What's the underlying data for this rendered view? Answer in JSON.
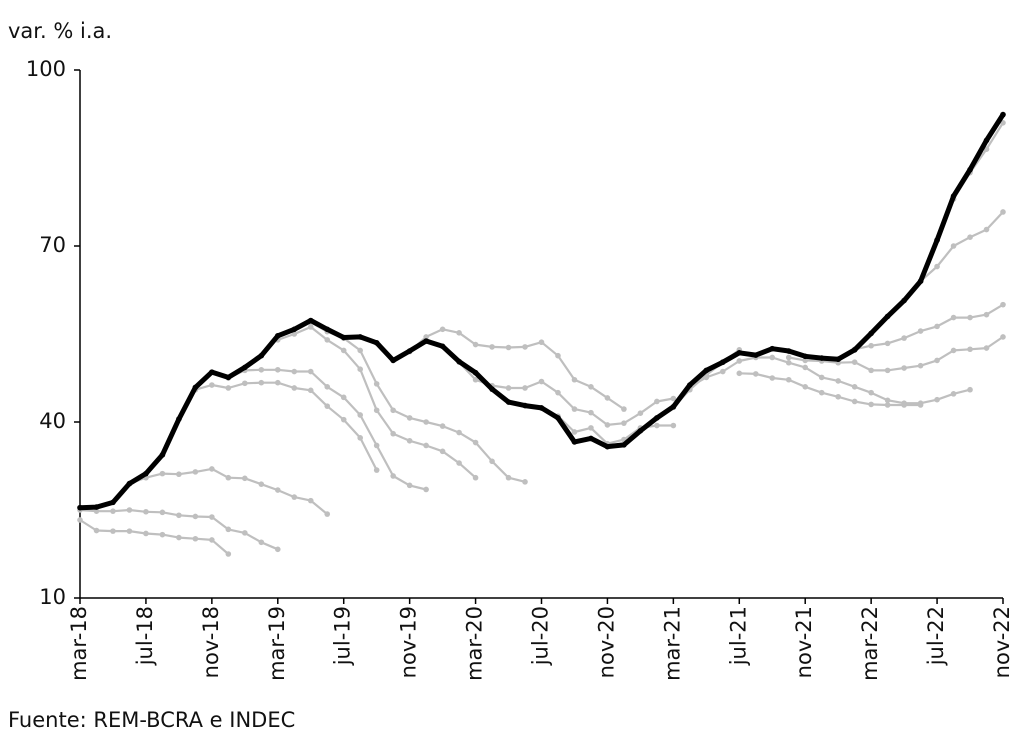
{
  "chart_data": {
    "type": "line",
    "y_label": "var. % i.a.",
    "source": "Fuente: REM-BCRA e INDEC",
    "categories": [
      "mar-18",
      null,
      null,
      null,
      "jul-18",
      null,
      null,
      null,
      "nov-18",
      null,
      null,
      null,
      "mar-19",
      null,
      null,
      null,
      "jul-19",
      null,
      null,
      null,
      "nov-19",
      null,
      null,
      null,
      "mar-20",
      null,
      null,
      null,
      "jul-20",
      null,
      null,
      null,
      "nov-20",
      null,
      null,
      null,
      "mar-21",
      null,
      null,
      null,
      "jul-21",
      null,
      null,
      null,
      "nov-21",
      null,
      null,
      null,
      "mar-22",
      null,
      null,
      null,
      "jul-22",
      null,
      null,
      null,
      "nov-22"
    ],
    "ylim": [
      10,
      100
    ],
    "yticks": [
      10,
      40,
      70,
      100
    ],
    "grid": false,
    "series": [
      {
        "color": "#bfbfbf",
        "values": [
          23.3,
          21.5,
          21.4,
          21.4,
          21.0,
          20.8,
          20.3,
          20.1,
          19.9,
          17.5,
          null,
          null,
          null,
          null,
          null,
          null,
          null,
          null,
          null,
          null,
          null,
          null,
          null,
          null,
          null,
          null,
          null,
          null,
          null,
          null,
          null,
          null,
          null,
          null,
          null,
          null,
          null,
          null,
          null,
          null,
          null,
          null,
          null,
          null,
          null,
          null,
          null,
          null,
          null,
          null,
          null,
          null,
          null,
          null,
          null,
          null,
          null
        ]
      },
      {
        "color": "#bfbfbf",
        "values": [
          25.0,
          24.8,
          24.8,
          25.0,
          24.7,
          24.6,
          24.1,
          23.9,
          23.8,
          21.7,
          21.1,
          19.5,
          18.3,
          null,
          null,
          null,
          null,
          null,
          null,
          null,
          null,
          null,
          null,
          null,
          null,
          null,
          null,
          null,
          null,
          null,
          null,
          null,
          null,
          null,
          null,
          null,
          null,
          null,
          null,
          null,
          null,
          null,
          null,
          null,
          null,
          null,
          null,
          null,
          null,
          null,
          null,
          null,
          null,
          null,
          null,
          null,
          null
        ]
      },
      {
        "color": "#bfbfbf",
        "values": [
          null,
          null,
          null,
          29.5,
          30.5,
          31.2,
          31.1,
          31.5,
          32.0,
          30.5,
          30.4,
          29.4,
          28.4,
          27.2,
          26.6,
          24.3,
          null,
          null,
          null,
          null,
          null,
          null,
          null,
          null,
          null,
          null,
          null,
          null,
          null,
          null,
          null,
          null,
          null,
          null,
          null,
          null,
          null,
          null,
          null,
          null,
          null,
          null,
          null,
          null,
          null,
          null,
          null,
          null,
          null,
          null,
          null,
          null,
          null,
          null,
          null,
          null,
          null
        ]
      },
      {
        "color": "#bfbfbf",
        "values": [
          null,
          null,
          null,
          null,
          null,
          null,
          null,
          45.5,
          46.3,
          45.8,
          46.6,
          46.7,
          46.7,
          45.8,
          45.4,
          42.7,
          40.4,
          37.3,
          31.8,
          null,
          null,
          null,
          null,
          null,
          null,
          null,
          null,
          null,
          null,
          null,
          null,
          null,
          null,
          null,
          null,
          null,
          null,
          null,
          null,
          null,
          null,
          null,
          null,
          null,
          null,
          null,
          null,
          null,
          null,
          null,
          null,
          null,
          null,
          null,
          null,
          null,
          null
        ]
      },
      {
        "color": "#bfbfbf",
        "values": [
          null,
          null,
          null,
          null,
          null,
          null,
          null,
          null,
          null,
          47.5,
          48.8,
          48.9,
          48.9,
          48.6,
          48.6,
          46.0,
          44.2,
          41.2,
          36.0,
          30.8,
          29.2,
          28.5,
          null,
          null,
          null,
          null,
          null,
          null,
          null,
          null,
          null,
          null,
          null,
          null,
          null,
          null,
          null,
          null,
          null,
          null,
          null,
          null,
          null,
          null,
          null,
          null,
          null,
          null,
          null,
          null,
          null,
          null,
          null,
          null,
          null,
          null,
          null
        ]
      },
      {
        "color": "#bfbfbf",
        "values": [
          null,
          null,
          null,
          null,
          null,
          null,
          null,
          null,
          null,
          null,
          null,
          null,
          54.0,
          55.0,
          56.2,
          54.0,
          52.2,
          49.0,
          42.0,
          38.0,
          36.8,
          36.0,
          35.0,
          33.0,
          30.5,
          null,
          null,
          null,
          null,
          null,
          null,
          null,
          null,
          null,
          null,
          null,
          null,
          null,
          null,
          null,
          null,
          null,
          null,
          null,
          null,
          null,
          null,
          null,
          null,
          null,
          null,
          null,
          null,
          null,
          null,
          null,
          null
        ]
      },
      {
        "color": "#bfbfbf",
        "values": [
          null,
          null,
          null,
          null,
          null,
          null,
          null,
          null,
          null,
          null,
          null,
          null,
          null,
          null,
          57.0,
          55.4,
          54.3,
          52.2,
          46.5,
          42.0,
          40.7,
          40.0,
          39.3,
          38.2,
          36.5,
          33.3,
          30.5,
          29.8,
          null,
          null,
          null,
          null,
          null,
          null,
          null,
          null,
          null,
          null,
          null,
          null,
          null,
          null,
          null,
          null,
          null,
          null,
          null,
          null,
          null,
          null,
          null,
          null,
          null,
          null,
          null,
          null,
          null
        ]
      },
      {
        "color": "#bfbfbf",
        "values": [
          null,
          null,
          null,
          null,
          null,
          null,
          null,
          null,
          null,
          null,
          null,
          null,
          null,
          null,
          null,
          null,
          null,
          null,
          null,
          null,
          52.0,
          54.5,
          55.8,
          55.2,
          53.2,
          52.8,
          52.7,
          52.8,
          53.6,
          51.3,
          47.2,
          46.0,
          44.1,
          42.2,
          null,
          null,
          null,
          null,
          null,
          null,
          null,
          null,
          null,
          null,
          null,
          null,
          null,
          null,
          null,
          null,
          null,
          null,
          null,
          null,
          null,
          null,
          null
        ]
      },
      {
        "color": "#bfbfbf",
        "values": [
          null,
          null,
          null,
          null,
          null,
          null,
          null,
          null,
          null,
          null,
          null,
          null,
          null,
          null,
          null,
          null,
          null,
          null,
          null,
          null,
          null,
          null,
          null,
          50.2,
          47.2,
          46.2,
          45.8,
          45.8,
          46.9,
          45.0,
          42.2,
          41.6,
          39.5,
          39.8,
          41.5,
          43.5,
          44.0,
          null,
          null,
          null,
          null,
          null,
          null,
          null,
          null,
          null,
          null,
          null,
          null,
          null,
          null,
          null,
          null,
          null,
          null,
          null,
          null
        ]
      },
      {
        "color": "#bfbfbf",
        "values": [
          null,
          null,
          null,
          null,
          null,
          null,
          null,
          null,
          null,
          null,
          null,
          null,
          null,
          null,
          null,
          null,
          null,
          null,
          null,
          null,
          null,
          null,
          null,
          null,
          null,
          null,
          null,
          null,
          42.4,
          41.0,
          38.3,
          39.0,
          36.3,
          37.0,
          39.0,
          39.4,
          39.4,
          null,
          null,
          null,
          null,
          null,
          null,
          null,
          null,
          null,
          null,
          null,
          null,
          null,
          null,
          null,
          null,
          null,
          null,
          null,
          null
        ]
      },
      {
        "color": "#bfbfbf",
        "values": [
          null,
          null,
          null,
          null,
          null,
          null,
          null,
          null,
          null,
          null,
          null,
          null,
          null,
          null,
          null,
          null,
          null,
          null,
          null,
          null,
          null,
          null,
          null,
          null,
          null,
          null,
          null,
          null,
          null,
          null,
          null,
          null,
          null,
          null,
          null,
          null,
          42.5,
          45.5,
          48.0,
          50.2,
          52.3,
          null,
          null,
          null,
          null,
          null,
          null,
          null,
          null,
          null,
          null,
          null,
          null,
          null,
          null,
          null,
          null
        ]
      },
      {
        "color": "#bfbfbf",
        "values": [
          null,
          null,
          null,
          null,
          null,
          null,
          null,
          null,
          null,
          null,
          null,
          null,
          null,
          null,
          null,
          null,
          null,
          null,
          null,
          null,
          null,
          null,
          null,
          null,
          null,
          null,
          null,
          null,
          null,
          null,
          null,
          null,
          null,
          null,
          null,
          null,
          null,
          46.0,
          47.6,
          48.6,
          50.4,
          51.0,
          51.0,
          50.1,
          49.3,
          47.6,
          47.0,
          46.0,
          45.0,
          43.7,
          43.2,
          43.2,
          43.8,
          44.8,
          45.5,
          null,
          null
        ]
      },
      {
        "color": "#bfbfbf",
        "values": [
          null,
          null,
          null,
          null,
          null,
          null,
          null,
          null,
          null,
          null,
          null,
          null,
          null,
          null,
          null,
          null,
          null,
          null,
          null,
          null,
          null,
          null,
          null,
          null,
          null,
          null,
          null,
          null,
          null,
          null,
          null,
          null,
          null,
          null,
          null,
          null,
          null,
          null,
          null,
          null,
          48.3,
          48.2,
          47.5,
          47.2,
          46.0,
          45.0,
          44.3,
          43.5,
          43.0,
          42.9,
          42.9,
          42.9,
          null,
          null,
          null,
          null,
          null
        ]
      },
      {
        "color": "#bfbfbf",
        "values": [
          null,
          null,
          null,
          null,
          null,
          null,
          null,
          null,
          null,
          null,
          null,
          null,
          null,
          null,
          null,
          null,
          null,
          null,
          null,
          null,
          null,
          null,
          null,
          null,
          null,
          null,
          null,
          null,
          null,
          null,
          null,
          null,
          null,
          null,
          null,
          null,
          null,
          null,
          null,
          null,
          null,
          null,
          null,
          51.0,
          50.5,
          50.4,
          50.1,
          50.2,
          48.8,
          48.8,
          49.2,
          49.6,
          50.5,
          52.2,
          52.4,
          52.6,
          54.5
        ]
      },
      {
        "color": "#bfbfbf",
        "values": [
          null,
          null,
          null,
          null,
          null,
          null,
          null,
          null,
          null,
          null,
          null,
          null,
          null,
          null,
          null,
          null,
          null,
          null,
          null,
          null,
          null,
          null,
          null,
          null,
          null,
          null,
          null,
          null,
          null,
          null,
          null,
          null,
          null,
          null,
          null,
          null,
          null,
          null,
          null,
          null,
          null,
          null,
          null,
          null,
          null,
          null,
          50.7,
          52.4,
          53.0,
          53.4,
          54.3,
          55.5,
          56.3,
          57.8,
          57.8,
          58.3,
          60.0
        ]
      },
      {
        "color": "#bfbfbf",
        "values": [
          null,
          null,
          null,
          null,
          null,
          null,
          null,
          null,
          null,
          null,
          null,
          null,
          null,
          null,
          null,
          null,
          null,
          null,
          null,
          null,
          null,
          null,
          null,
          null,
          null,
          null,
          null,
          null,
          null,
          null,
          null,
          null,
          null,
          null,
          null,
          null,
          null,
          null,
          null,
          null,
          null,
          null,
          null,
          null,
          null,
          null,
          null,
          null,
          null,
          null,
          null,
          64.0,
          66.5,
          70.0,
          71.5,
          72.8,
          75.8
        ]
      },
      {
        "color": "#bfbfbf",
        "values": [
          null,
          null,
          null,
          null,
          null,
          null,
          null,
          null,
          null,
          null,
          null,
          null,
          null,
          null,
          null,
          null,
          null,
          null,
          null,
          null,
          null,
          null,
          null,
          null,
          null,
          null,
          null,
          null,
          null,
          null,
          null,
          null,
          null,
          null,
          null,
          null,
          null,
          null,
          null,
          null,
          null,
          null,
          null,
          null,
          null,
          null,
          null,
          null,
          null,
          null,
          null,
          null,
          71.0,
          78.0,
          82.5,
          86.5,
          91.0
        ]
      },
      {
        "color": "#000000",
        "values": [
          25.4,
          25.5,
          26.3,
          29.5,
          31.2,
          34.4,
          40.5,
          45.9,
          48.5,
          47.6,
          49.3,
          51.3,
          54.7,
          55.8,
          57.3,
          55.8,
          54.4,
          54.5,
          53.5,
          50.5,
          52.1,
          53.8,
          52.9,
          50.3,
          48.4,
          45.6,
          43.4,
          42.8,
          42.4,
          40.7,
          36.6,
          37.2,
          35.8,
          36.1,
          38.5,
          40.7,
          42.6,
          46.3,
          48.8,
          50.2,
          51.8,
          51.4,
          52.5,
          52.1,
          51.2,
          50.9,
          50.7,
          52.3,
          55.1,
          58.0,
          60.7,
          64.0,
          71.0,
          78.5,
          83.0,
          88.0,
          92.4
        ]
      }
    ]
  }
}
